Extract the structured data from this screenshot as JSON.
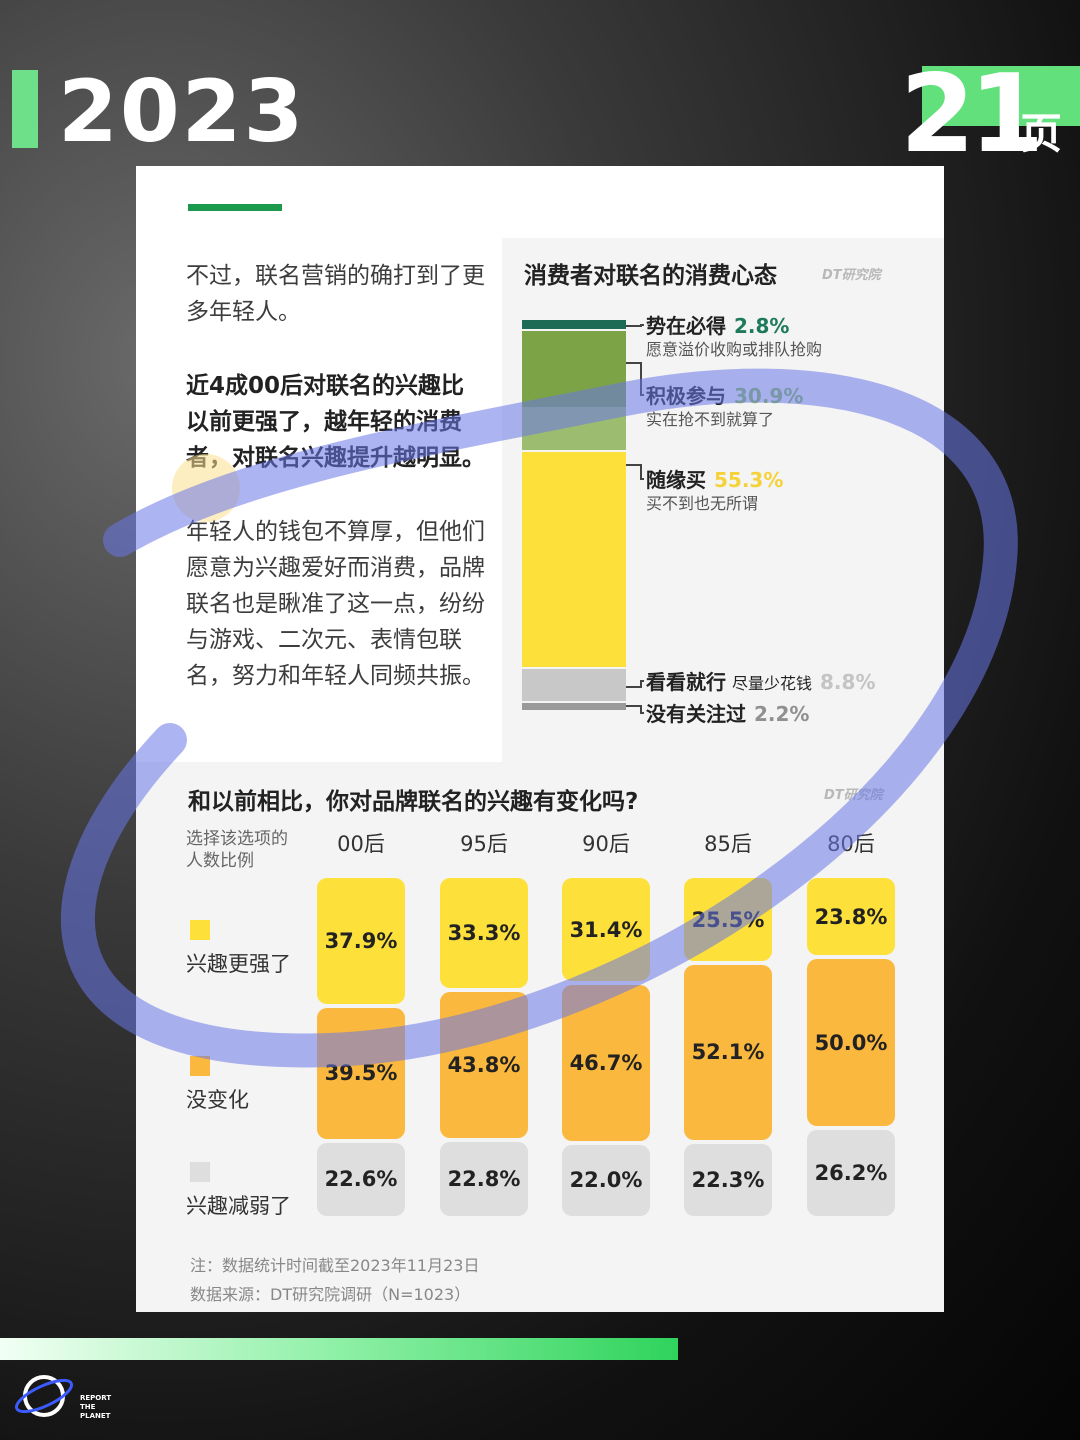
{
  "header": {
    "year": "2023",
    "page_number": "21",
    "page_unit": "页"
  },
  "intro": {
    "p1": "不过，联名营销的确打到了更多年轻人。",
    "p2": "近4成00后对联名的兴趣比以前更强了，越年轻的消费者，对联名兴趣提升越明显。",
    "p3": "年轻人的钱包不算厚，但他们愿意为兴趣爱好而消费，品牌联名也是瞅准了这一点，纷纷与游戏、二次元、表情包联名，努力和年轻人同频共振。"
  },
  "brand_mark": "DT研究院",
  "chart_data": [
    {
      "type": "bar",
      "title": "消费者对联名的消费心态",
      "stacked": true,
      "categories": [
        "势在必得",
        "积极参与",
        "随缘买",
        "看看就行",
        "没有关注过"
      ],
      "values": [
        2.8,
        30.9,
        55.3,
        8.8,
        2.2
      ],
      "value_labels": [
        "2.8%",
        "30.9%",
        "55.3%",
        "8.8%",
        "2.2%"
      ],
      "subtitles": [
        "愿意溢价收购或排队抢购",
        "实在抢不到就算了",
        "买不到也无所谓",
        "尽量少花钱",
        ""
      ],
      "colors": [
        "#1e6b55",
        "#7ca346",
        "#fde03a",
        "#c8c8c8",
        "#9a9a9a"
      ],
      "label_colors": [
        "#1e7a5c",
        "#8bbf5a",
        "#f5d23a",
        "#c4c4c4",
        "#909090"
      ]
    },
    {
      "type": "bar",
      "title": "和以前相比，你对品牌联名的兴趣有变化吗?",
      "stacked": true,
      "ylabel": "选择该选项的人数比例",
      "categories": [
        "00后",
        "95后",
        "90后",
        "85后",
        "80后"
      ],
      "series": [
        {
          "name": "兴趣更强了",
          "values": [
            37.9,
            33.3,
            31.4,
            25.5,
            23.8
          ],
          "labels": [
            "37.9%",
            "33.3%",
            "31.4%",
            "25.5%",
            "23.8%"
          ],
          "color": "#fde03a"
        },
        {
          "name": "没变化",
          "values": [
            39.5,
            43.8,
            46.7,
            52.1,
            50.0
          ],
          "labels": [
            "39.5%",
            "43.8%",
            "46.7%",
            "52.1%",
            "50.0%"
          ],
          "color": "#fbb83e"
        },
        {
          "name": "兴趣减弱了",
          "values": [
            22.6,
            22.8,
            22.0,
            22.3,
            26.2
          ],
          "labels": [
            "22.6%",
            "22.8%",
            "22.0%",
            "22.3%",
            "26.2%"
          ],
          "color": "#dedede"
        }
      ]
    }
  ],
  "notes": {
    "date": "注：数据统计时间截至2023年11月23日",
    "source": "数据来源：DT研究院调研（N=1023）"
  },
  "footer": {
    "logo_lines": [
      "REPORT",
      "THE",
      "PLANET"
    ]
  }
}
